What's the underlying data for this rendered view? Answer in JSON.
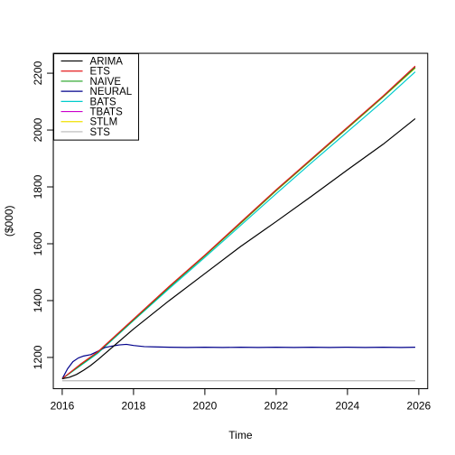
{
  "chart_data": {
    "type": "line",
    "title": "",
    "xlabel": "Time",
    "ylabel": "($000)",
    "xlim": [
      2015.75,
      2026.25
    ],
    "ylim": [
      1090,
      2270
    ],
    "grid": false,
    "legend_position": "top-left",
    "x_ticks": [
      2016,
      2018,
      2020,
      2022,
      2024,
      2026
    ],
    "y_ticks": [
      1200,
      1400,
      1600,
      1800,
      2000,
      2200
    ],
    "series": [
      {
        "name": "ARIMA",
        "color": "#000000",
        "x": [
          2016.0,
          2016.2,
          2016.4,
          2016.6,
          2016.8,
          2017.0,
          2018.0,
          2019.0,
          2020.0,
          2021.0,
          2022.0,
          2023.0,
          2024.0,
          2025.0,
          2025.9
        ],
        "y": [
          1125,
          1130,
          1140,
          1155,
          1172,
          1192,
          1300,
          1400,
          1495,
          1590,
          1678,
          1768,
          1860,
          1950,
          2040
        ]
      },
      {
        "name": "ETS",
        "color": "#e41a1c",
        "x": [
          2016.0,
          2016.5,
          2017.0,
          2018.0,
          2019.0,
          2020.0,
          2021.0,
          2022.0,
          2023.0,
          2024.0,
          2025.0,
          2025.9
        ],
        "y": [
          1125,
          1175,
          1220,
          1335,
          1450,
          1560,
          1675,
          1790,
          1900,
          2010,
          2120,
          2225
        ]
      },
      {
        "name": "NAIVE",
        "color": "#1fa01f",
        "x": [
          2016.0,
          2016.5,
          2017.0,
          2018.0,
          2019.0,
          2020.0,
          2021.0,
          2022.0,
          2023.0,
          2024.0,
          2025.0,
          2025.9
        ],
        "y": [
          1125,
          1172,
          1218,
          1332,
          1447,
          1558,
          1672,
          1787,
          1897,
          2007,
          2117,
          2220
        ]
      },
      {
        "name": "NEURAL",
        "color": "#00008b",
        "x": [
          2016.0,
          2016.15,
          2016.3,
          2016.45,
          2016.6,
          2016.8,
          2017.0,
          2017.2,
          2017.4,
          2017.6,
          2017.8,
          2018.0,
          2018.3,
          2018.6,
          2019.0,
          2019.5,
          2020.0,
          2020.5,
          2021.0,
          2021.5,
          2022.0,
          2022.5,
          2023.0,
          2023.5,
          2024.0,
          2024.5,
          2025.0,
          2025.5,
          2025.9
        ],
        "y": [
          1125,
          1160,
          1185,
          1198,
          1205,
          1210,
          1222,
          1235,
          1240,
          1244,
          1246,
          1242,
          1238,
          1237,
          1236,
          1235,
          1236,
          1235,
          1236,
          1235,
          1236,
          1235,
          1236,
          1235,
          1236,
          1235,
          1236,
          1235,
          1236
        ]
      },
      {
        "name": "BATS",
        "color": "#00cccc",
        "x": [
          2016.0,
          2016.5,
          2017.0,
          2018.0,
          2019.0,
          2020.0,
          2021.0,
          2022.0,
          2023.0,
          2024.0,
          2025.0,
          2025.9
        ],
        "y": [
          1125,
          1170,
          1215,
          1330,
          1442,
          1552,
          1664,
          1776,
          1886,
          1994,
          2102,
          2205
        ]
      },
      {
        "name": "TBATS",
        "color": "#cc00cc",
        "x": [
          2016.0,
          2016.5,
          2017.0,
          2018.0,
          2019.0,
          2020.0,
          2021.0,
          2022.0,
          2023.0,
          2024.0,
          2025.0,
          2025.9
        ],
        "y": [
          1125,
          1174,
          1219,
          1334,
          1449,
          1559,
          1673,
          1788,
          1898,
          2008,
          2118,
          2222
        ]
      },
      {
        "name": "STLM",
        "color": "#f0e000",
        "x": [
          2016.0,
          2016.5,
          2017.0,
          2018.0,
          2019.0,
          2020.0,
          2021.0,
          2022.0,
          2023.0,
          2024.0,
          2025.0,
          2025.9
        ],
        "y": [
          1125,
          1173,
          1217,
          1333,
          1448,
          1557,
          1671,
          1786,
          1896,
          2006,
          2116,
          2218
        ]
      },
      {
        "name": "STS",
        "color": "#b8b8b8",
        "x": [
          2016.0,
          2025.9
        ],
        "y": [
          1118,
          1118
        ]
      }
    ]
  }
}
